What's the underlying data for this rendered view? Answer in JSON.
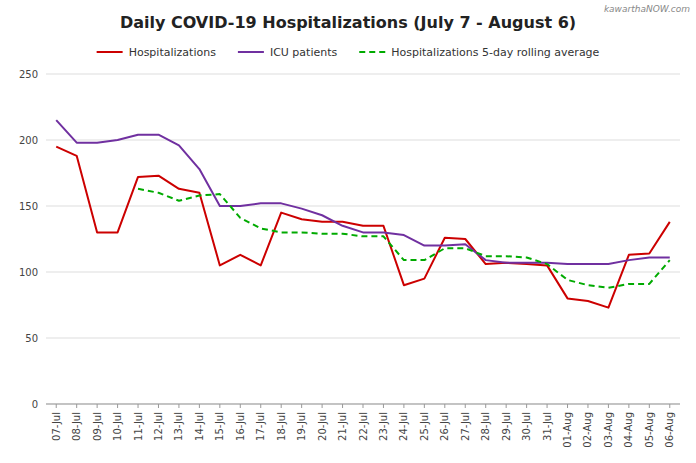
{
  "chart_data": {
    "type": "line",
    "title": "Daily COVID-19 Hospitalizations (July 7 - August 6)",
    "annotations": [
      "kawarthaNOW.com"
    ],
    "categories": [
      "07-Jul",
      "08-Jul",
      "09-Jul",
      "10-Jul",
      "11-Jul",
      "12-Jul",
      "13-Jul",
      "14-Jul",
      "15-Jul",
      "16-Jul",
      "17-Jul",
      "18-Jul",
      "19-Jul",
      "20-Jul",
      "21-Jul",
      "22-Jul",
      "23-Jul",
      "24-Jul",
      "25-Jul",
      "26-Jul",
      "27-Jul",
      "28-Jul",
      "29-Jul",
      "30-Jul",
      "31-Jul",
      "01-Aug",
      "02-Aug",
      "03-Aug",
      "04-Aug",
      "05-Aug",
      "06-Aug"
    ],
    "series": [
      {
        "name": "Hospitalizations",
        "color": "#cc0000",
        "line_style": "solid",
        "values": [
          195,
          188,
          130,
          130,
          172,
          173,
          163,
          160,
          105,
          113,
          105,
          145,
          140,
          138,
          138,
          135,
          135,
          90,
          95,
          126,
          125,
          106,
          107,
          106,
          105,
          80,
          78,
          73,
          113,
          114,
          138
        ]
      },
      {
        "name": "ICU patients",
        "color": "#7030a0",
        "line_style": "solid",
        "values": [
          215,
          198,
          198,
          200,
          204,
          204,
          196,
          178,
          150,
          150,
          152,
          152,
          148,
          143,
          135,
          130,
          130,
          128,
          120,
          120,
          121,
          109,
          107,
          107,
          107,
          106,
          106,
          106,
          109,
          111,
          111
        ]
      },
      {
        "name": "Hospitalizations 5-day rolling average",
        "color": "#00aa00",
        "line_style": "dashed",
        "values": [
          null,
          null,
          null,
          null,
          163,
          160,
          154,
          158,
          159,
          141,
          133,
          130,
          130,
          129,
          129,
          127,
          127,
          109,
          109,
          118,
          118,
          112,
          112,
          111,
          106,
          94,
          90,
          88,
          91,
          91,
          109
        ]
      }
    ],
    "ylim": [
      0,
      250
    ],
    "yticks": [
      0,
      50,
      100,
      150,
      200,
      250
    ],
    "grid": true,
    "legend": "top"
  }
}
